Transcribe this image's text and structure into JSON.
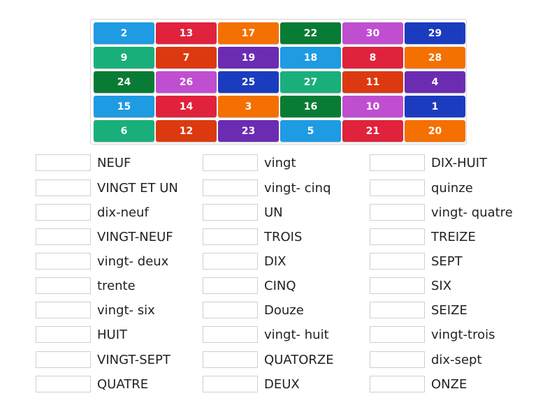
{
  "colors": {
    "blue": "#1e9be2",
    "red": "#e0223c",
    "orange": "#f47000",
    "darkgreen": "#087c34",
    "pink": "#c04ed1",
    "navy": "#1b3cbf",
    "teal": "#19af7b",
    "redorange": "#dc3910",
    "purple": "#6b2cb2"
  },
  "tiles": [
    [
      {
        "n": "2",
        "c": "blue"
      },
      {
        "n": "13",
        "c": "red"
      },
      {
        "n": "17",
        "c": "orange"
      },
      {
        "n": "22",
        "c": "darkgreen"
      },
      {
        "n": "30",
        "c": "pink"
      },
      {
        "n": "29",
        "c": "navy"
      }
    ],
    [
      {
        "n": "9",
        "c": "teal"
      },
      {
        "n": "7",
        "c": "redorange"
      },
      {
        "n": "19",
        "c": "purple"
      },
      {
        "n": "18",
        "c": "blue"
      },
      {
        "n": "8",
        "c": "red"
      },
      {
        "n": "28",
        "c": "orange"
      }
    ],
    [
      {
        "n": "24",
        "c": "darkgreen"
      },
      {
        "n": "26",
        "c": "pink"
      },
      {
        "n": "25",
        "c": "navy"
      },
      {
        "n": "27",
        "c": "teal"
      },
      {
        "n": "11",
        "c": "redorange"
      },
      {
        "n": "4",
        "c": "purple"
      }
    ],
    [
      {
        "n": "15",
        "c": "blue"
      },
      {
        "n": "14",
        "c": "red"
      },
      {
        "n": "3",
        "c": "orange"
      },
      {
        "n": "16",
        "c": "darkgreen"
      },
      {
        "n": "10",
        "c": "pink"
      },
      {
        "n": "1",
        "c": "navy"
      }
    ],
    [
      {
        "n": "6",
        "c": "teal"
      },
      {
        "n": "12",
        "c": "redorange"
      },
      {
        "n": "23",
        "c": "purple"
      },
      {
        "n": "5",
        "c": "blue"
      },
      {
        "n": "21",
        "c": "red"
      },
      {
        "n": "20",
        "c": "orange"
      }
    ]
  ],
  "words": [
    [
      "NEUF",
      "VINGT ET UN",
      "dix-neuf",
      "VINGT-NEUF",
      "vingt- deux",
      "trente",
      "vingt- six",
      "HUIT",
      "VINGT-SEPT",
      "QUATRE"
    ],
    [
      "vingt",
      "vingt- cinq",
      "UN",
      "TROIS",
      "DIX",
      "CINQ",
      "Douze",
      "vingt- huit",
      "QUATORZE",
      "DEUX"
    ],
    [
      "DIX-HUIT",
      "quinze",
      "vingt- quatre",
      "TREIZE",
      "SEPT",
      "SIX",
      "SEIZE",
      "vingt-trois",
      "dix-sept",
      "ONZE"
    ]
  ]
}
